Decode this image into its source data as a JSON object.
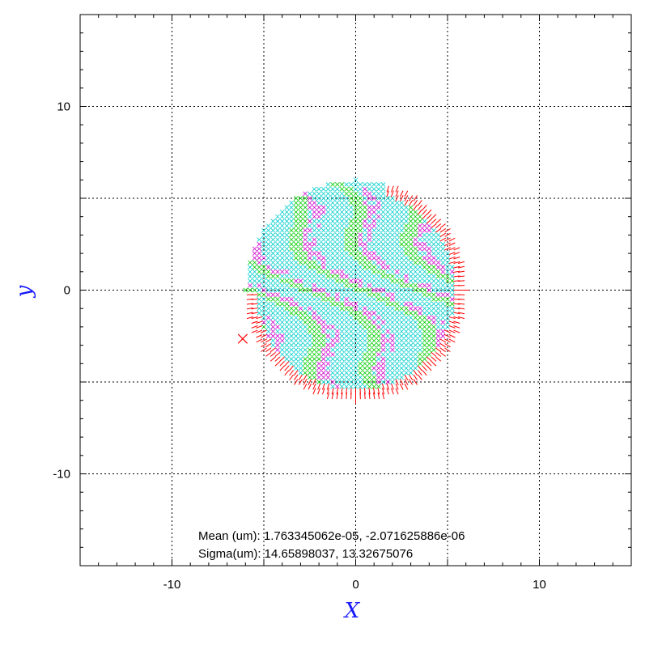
{
  "chart_data": {
    "type": "scatter",
    "title": "",
    "xlabel": "X",
    "ylabel": "y",
    "xlim": [
      -15,
      15
    ],
    "ylim": [
      -15,
      15
    ],
    "grid": true,
    "x_ticks": [
      -10,
      0,
      10
    ],
    "y_ticks": [
      -10,
      0,
      10
    ],
    "x_tick_labels": [
      "-10",
      "0",
      "10"
    ],
    "y_tick_labels": [
      "10",
      "0",
      "-10"
    ],
    "spot_radius": 6,
    "sampling_step": 0.25,
    "series": [
      {
        "marker": "x",
        "color": "#00cc00"
      },
      {
        "marker": "x",
        "color": "#cc00cc"
      },
      {
        "marker": "x",
        "color": "#00cccc"
      },
      {
        "marker": "line",
        "color": "#ff0000"
      }
    ],
    "annotations": {
      "mean": "Mean (um): 1.763345062e-05, -2.071625886e-06",
      "sigma": "Sigma(um): 14.65898037, 13.32675076"
    }
  }
}
